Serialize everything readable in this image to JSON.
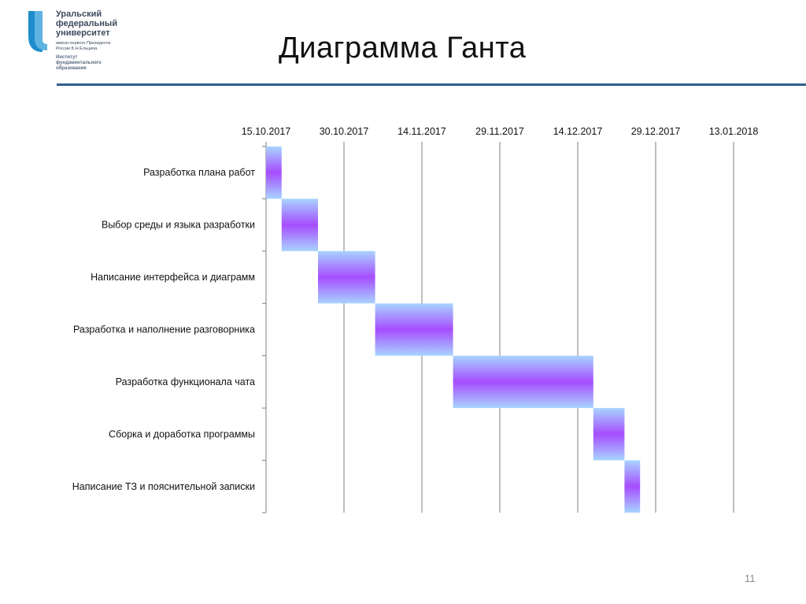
{
  "header": {
    "title": "Диаграмма Ганта",
    "logo": {
      "name": "Уральский\nфедеральный\nуниверситет",
      "subtitle": "имени первого Президента\nРоссии Б.Н.Ельцина",
      "institute": "Институт\nфундаментального\nобразования"
    }
  },
  "colors": {
    "header_rule": "#2f5f8f",
    "logo_blue": "#1f8dcc",
    "bar_edge": "#a8d4ff",
    "bar_center": "#a64dff"
  },
  "chart_data": {
    "type": "gantt",
    "title": "",
    "x_ticks": [
      "15.10.2017",
      "30.10.2017",
      "14.11.2017",
      "29.11.2017",
      "14.12.2017",
      "29.12.2017",
      "13.01.2018"
    ],
    "x_range": [
      "15.10.2017",
      "13.01.2018"
    ],
    "tasks": [
      {
        "name": "Разработка плана работ",
        "start": "15.10.2017",
        "end": "18.10.2017"
      },
      {
        "name": "Выбор среды и языка разработки",
        "start": "18.10.2017",
        "end": "25.10.2017"
      },
      {
        "name": "Написание интерфейса и диаграмм",
        "start": "25.10.2017",
        "end": "05.11.2017"
      },
      {
        "name": "Разработка и наполнение разговорника",
        "start": "05.11.2017",
        "end": "20.11.2017"
      },
      {
        "name": "Разработка функционала чата",
        "start": "20.11.2017",
        "end": "17.12.2017"
      },
      {
        "name": "Сборка и доработка программы",
        "start": "17.12.2017",
        "end": "23.12.2017"
      },
      {
        "name": "Написание ТЗ и пояснительной записки",
        "start": "23.12.2017",
        "end": "26.12.2017"
      }
    ],
    "grid": true,
    "legend": "none"
  },
  "page_number": "11"
}
